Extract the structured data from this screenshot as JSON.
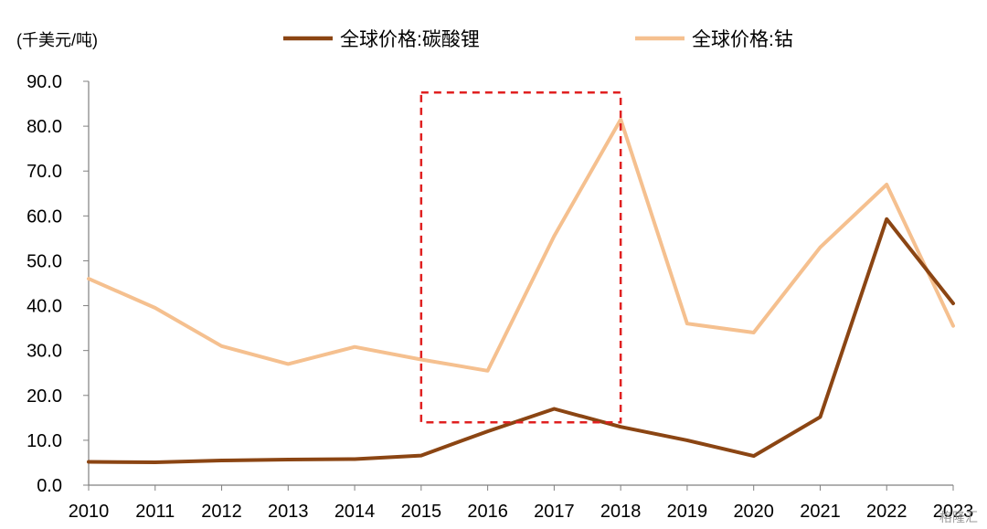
{
  "chart_data": {
    "type": "line",
    "unit_label": "(千美元/吨)",
    "x": [
      "2010",
      "2011",
      "2012",
      "2013",
      "2014",
      "2015",
      "2016",
      "2017",
      "2018",
      "2019",
      "2020",
      "2021",
      "2022",
      "2023"
    ],
    "ylim": [
      0,
      90
    ],
    "yticks": [
      "0.0",
      "10.0",
      "20.0",
      "30.0",
      "40.0",
      "50.0",
      "60.0",
      "70.0",
      "80.0",
      "90.0"
    ],
    "legend_position": "top",
    "series": [
      {
        "name": "全球价格:碳酸锂",
        "color": "#8B4513",
        "values": [
          5.2,
          5.1,
          5.5,
          5.7,
          5.8,
          6.6,
          12.0,
          17.0,
          13.0,
          10.0,
          6.5,
          15.2,
          59.3,
          40.5
        ]
      },
      {
        "name": "全球价格:钴",
        "color": "#F5C08F",
        "values": [
          46.0,
          39.5,
          31.0,
          27.0,
          30.8,
          28.0,
          25.5,
          55.5,
          81.5,
          36.0,
          34.0,
          53.0,
          67.0,
          35.5
        ]
      }
    ],
    "highlight_box": {
      "x_from": "2015",
      "x_to": "2018",
      "y_from": 14.0,
      "y_to": 87.5,
      "color": "#E02020",
      "style": "dashed"
    }
  },
  "watermark": "格隆汇"
}
